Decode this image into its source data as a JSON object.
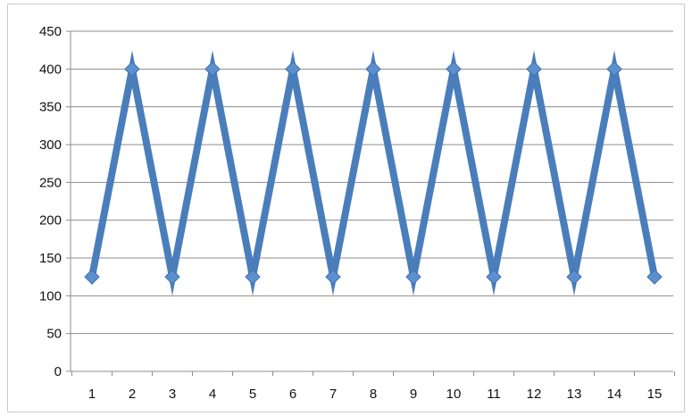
{
  "chart_data": {
    "type": "line",
    "title": "",
    "xlabel": "",
    "ylabel": "",
    "x": [
      1,
      2,
      3,
      4,
      5,
      6,
      7,
      8,
      9,
      10,
      11,
      12,
      13,
      14,
      15
    ],
    "categories": [
      "1",
      "2",
      "3",
      "4",
      "5",
      "6",
      "7",
      "8",
      "9",
      "10",
      "11",
      "12",
      "13",
      "14",
      "15"
    ],
    "series": [
      {
        "values": [
          125,
          400,
          125,
          400,
          125,
          400,
          125,
          400,
          125,
          400,
          125,
          400,
          125,
          400,
          125
        ],
        "color": "#4a7ebb",
        "marker": "diamond"
      }
    ],
    "ylim": [
      0,
      450
    ],
    "yticks": [
      0,
      50,
      100,
      150,
      200,
      250,
      300,
      350,
      400,
      450
    ],
    "ytick_labels": [
      "0",
      "50",
      "100",
      "150",
      "200",
      "250",
      "300",
      "350",
      "400",
      "450"
    ],
    "grid": true,
    "legend": "none",
    "colors": {
      "gridline": "#8c8c8c",
      "axis": "#8c8c8c",
      "frame": "#c8c8c8",
      "line": "#4a7ebb",
      "marker_fill": "#5b8fd0",
      "marker_stroke": "#3f6ea8"
    }
  }
}
